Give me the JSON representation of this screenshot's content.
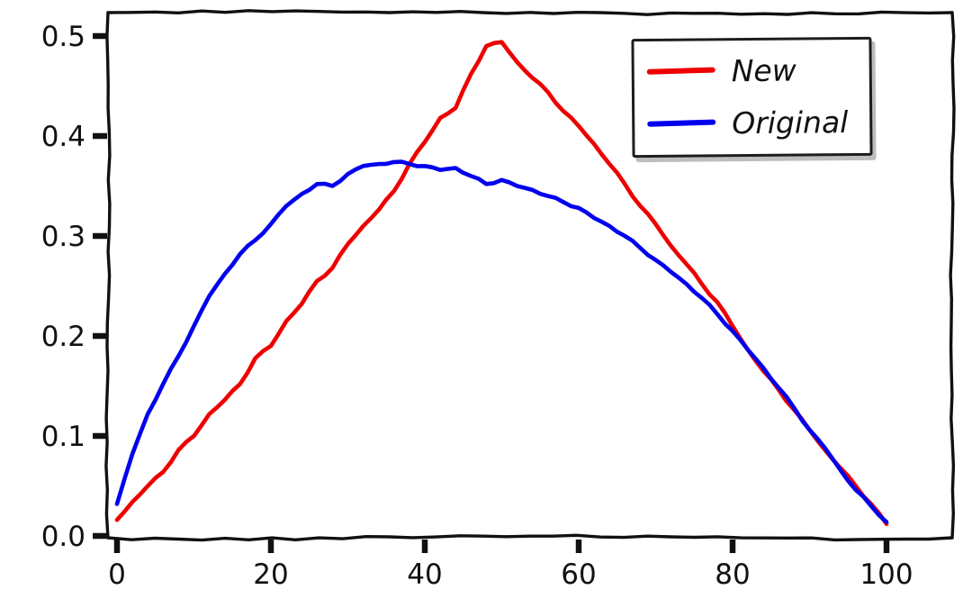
{
  "chart_data": {
    "type": "line",
    "title": "",
    "xlabel": "",
    "ylabel": "",
    "style": "xkcd-hand-drawn",
    "grid": false,
    "legend_position": "upper right",
    "xlim": [
      0,
      100
    ],
    "ylim": [
      0,
      0.52
    ],
    "xticks": {
      "values": [
        0,
        20,
        40,
        60,
        80,
        100
      ],
      "labels": [
        "0",
        "20",
        "40",
        "60",
        "80",
        "100"
      ]
    },
    "yticks": {
      "values": [
        0.0,
        0.1,
        0.2,
        0.3,
        0.4,
        0.5
      ],
      "labels": [
        "0.0",
        "0.1",
        "0.2",
        "0.3",
        "0.4",
        "0.5"
      ]
    },
    "x": [
      0,
      2,
      4,
      6,
      8,
      10,
      12,
      14,
      16,
      18,
      20,
      22,
      24,
      26,
      28,
      30,
      32,
      34,
      36,
      38,
      40,
      42,
      44,
      46,
      48,
      50,
      52,
      54,
      56,
      58,
      60,
      62,
      64,
      66,
      68,
      70,
      72,
      74,
      76,
      78,
      80,
      82,
      84,
      86,
      88,
      90,
      92,
      94,
      96,
      98,
      100
    ],
    "series": [
      {
        "name": "New",
        "color": "#ee0000",
        "values": [
          0.016,
          0.034,
          0.05,
          0.064,
          0.086,
          0.1,
          0.122,
          0.136,
          0.152,
          0.178,
          0.19,
          0.215,
          0.232,
          0.255,
          0.268,
          0.292,
          0.31,
          0.326,
          0.345,
          0.372,
          0.394,
          0.418,
          0.428,
          0.462,
          0.49,
          0.494,
          0.474,
          0.458,
          0.444,
          0.425,
          0.41,
          0.392,
          0.372,
          0.352,
          0.33,
          0.312,
          0.29,
          0.272,
          0.252,
          0.234,
          0.21,
          0.186,
          0.165,
          0.146,
          0.126,
          0.106,
          0.086,
          0.068,
          0.05,
          0.032,
          0.012
        ]
      },
      {
        "name": "Original",
        "color": "#0000ee",
        "values": [
          0.032,
          0.082,
          0.122,
          0.152,
          0.18,
          0.21,
          0.24,
          0.262,
          0.282,
          0.296,
          0.312,
          0.33,
          0.342,
          0.352,
          0.35,
          0.362,
          0.37,
          0.372,
          0.374,
          0.372,
          0.37,
          0.366,
          0.368,
          0.36,
          0.352,
          0.356,
          0.35,
          0.346,
          0.34,
          0.334,
          0.328,
          0.318,
          0.31,
          0.3,
          0.288,
          0.276,
          0.264,
          0.252,
          0.238,
          0.222,
          0.205,
          0.186,
          0.168,
          0.148,
          0.128,
          0.106,
          0.088,
          0.066,
          0.046,
          0.03,
          0.014
        ]
      }
    ]
  },
  "colors": {
    "axis": "#111111",
    "background": "#ffffff",
    "tick_label": "#111111",
    "legend_border": "#1d1d1d",
    "legend_shadow": "#bdbdbd"
  }
}
